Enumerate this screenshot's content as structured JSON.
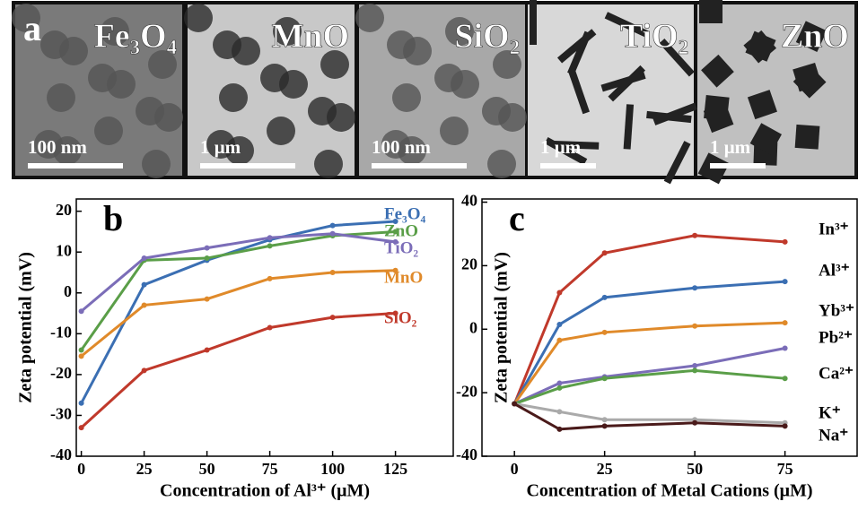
{
  "panel_a": {
    "label": "a",
    "images": [
      {
        "material": "Fe₃O₄",
        "scale": "100 nm"
      },
      {
        "material": "MnO",
        "scale": "1 μm"
      },
      {
        "material": "SiO₂",
        "scale": "100 nm"
      },
      {
        "material": "TiO₂",
        "scale": "1 μm"
      },
      {
        "material": "ZnO",
        "scale": "1 μm"
      }
    ]
  },
  "chart_data": [
    {
      "type": "line",
      "panel_label": "b",
      "x_label": "Concentration of Al³⁺ (μM)",
      "y_label": "Zeta potential (mV)",
      "x": [
        0,
        25,
        50,
        75,
        100,
        125
      ],
      "xlim": [
        -2,
        148
      ],
      "xticks": [
        0,
        25,
        50,
        75,
        100,
        125
      ],
      "ylim": [
        -40,
        23
      ],
      "yticks": [
        -40,
        -30,
        -20,
        -10,
        0,
        10,
        20
      ],
      "series": [
        {
          "name": "Fe₃O₄",
          "color": "#3b6fb3",
          "values": [
            -27,
            2,
            8,
            13,
            16.5,
            17.5
          ]
        },
        {
          "name": "ZnO",
          "color": "#5a9e48",
          "values": [
            -14,
            8,
            8.5,
            11.5,
            14,
            15
          ]
        },
        {
          "name": "TiO₂",
          "color": "#7b6db8",
          "values": [
            -4.5,
            8.5,
            11,
            13.5,
            14.5,
            12.5
          ]
        },
        {
          "name": "MnO",
          "color": "#e08a2a",
          "values": [
            -15.5,
            -3,
            -1.5,
            3.5,
            5,
            5.5
          ]
        },
        {
          "name": "SiO₂",
          "color": "#c0392b",
          "values": [
            -33,
            -19,
            -14,
            -8.5,
            -6,
            -5
          ]
        }
      ]
    },
    {
      "type": "line",
      "panel_label": "c",
      "x_label": "Concentration of Metal Cations (μM)",
      "y_label": "Zeta potential (mV)",
      "x": [
        0,
        12.5,
        25,
        50,
        75
      ],
      "xlim": [
        -9,
        95
      ],
      "xticks": [
        0,
        25,
        50,
        75
      ],
      "ylim": [
        -40,
        41
      ],
      "yticks": [
        -40,
        -20,
        0,
        20,
        40
      ],
      "series": [
        {
          "name": "In³⁺",
          "color": "#c0392b",
          "values": [
            -23.5,
            11.5,
            24,
            29.5,
            27.5
          ]
        },
        {
          "name": "Al³⁺",
          "color": "#3b6fb3",
          "values": [
            -23.5,
            1.5,
            10,
            13,
            15
          ]
        },
        {
          "name": "Yb³⁺",
          "color": "#e08a2a",
          "values": [
            -23.5,
            -3.5,
            -1,
            1,
            2
          ]
        },
        {
          "name": "Pb²⁺",
          "color": "#7b6db8",
          "values": [
            -23.5,
            -17,
            -15,
            -11.5,
            -6
          ]
        },
        {
          "name": "Ca²⁺",
          "color": "#5a9e48",
          "values": [
            -23.5,
            -18.5,
            -15.5,
            -13,
            -15.5
          ]
        },
        {
          "name": "K⁺",
          "color": "#aaaaaa",
          "values": [
            -23.5,
            -26,
            -28.5,
            -28.5,
            -29.5
          ]
        },
        {
          "name": "Na⁺",
          "color": "#4a1a1a",
          "values": [
            -23.5,
            -31.5,
            -30.5,
            -29.5,
            -30.5
          ]
        }
      ]
    }
  ]
}
